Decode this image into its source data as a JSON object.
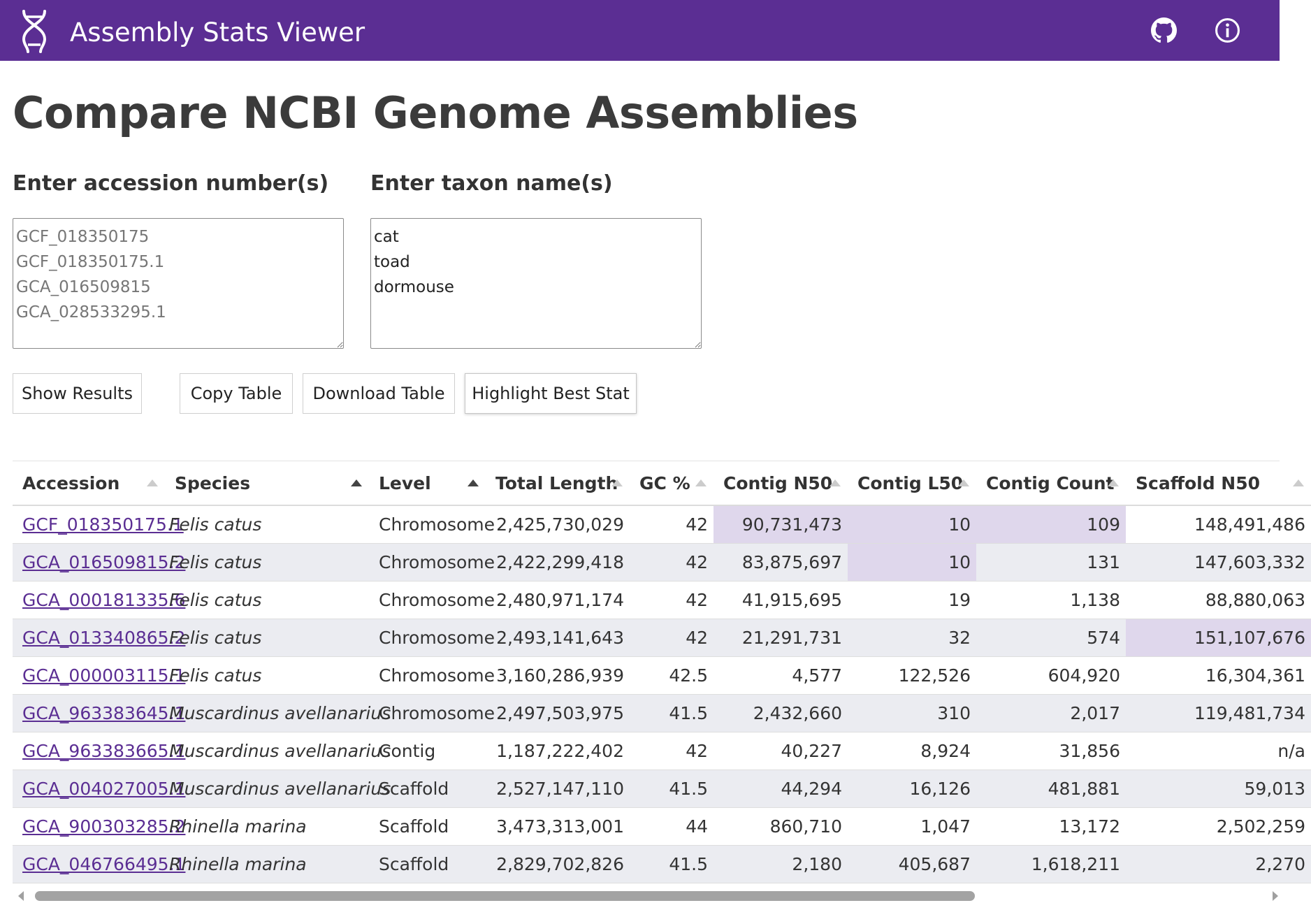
{
  "header": {
    "app_title": "Assembly Stats Viewer",
    "logo_icon": "dna-icon",
    "github_icon": "github-icon",
    "info_icon": "info-icon",
    "bg_color": "#5b2e93"
  },
  "main": {
    "page_title": "Compare NCBI Genome Assemblies",
    "accession_label": "Enter accession number(s)",
    "accession_placeholder": "GCF_018350175\nGCF_018350175.1\nGCA_016509815\nGCA_028533295.1",
    "taxon_label": "Enter taxon name(s)",
    "taxon_value": "cat\ntoad\ndormouse"
  },
  "buttons": {
    "show_results": "Show Results",
    "copy_table": "Copy Table",
    "download_table": "Download Table",
    "highlight_best": "Highlight Best Stat"
  },
  "table": {
    "columns": [
      "Accession",
      "Species",
      "Level",
      "Total Length",
      "GC %",
      "Contig N50",
      "Contig L50",
      "Contig Count",
      "Scaffold N50"
    ],
    "rows": [
      [
        "GCF_018350175.1",
        "Felis catus",
        "Chromosome",
        "2,425,730,029",
        "42",
        "90,731,473",
        "10",
        "109",
        "148,491,486"
      ],
      [
        "GCA_016509815.2",
        "Felis catus",
        "Chromosome",
        "2,422,299,418",
        "42",
        "83,875,697",
        "10",
        "131",
        "147,603,332"
      ],
      [
        "GCA_000181335.6",
        "Felis catus",
        "Chromosome",
        "2,480,971,174",
        "42",
        "41,915,695",
        "19",
        "1,138",
        "88,880,063"
      ],
      [
        "GCA_013340865.2",
        "Felis catus",
        "Chromosome",
        "2,493,141,643",
        "42",
        "21,291,731",
        "32",
        "574",
        "151,107,676"
      ],
      [
        "GCA_000003115.1",
        "Felis catus",
        "Chromosome",
        "3,160,286,939",
        "42.5",
        "4,577",
        "122,526",
        "604,920",
        "16,304,361"
      ],
      [
        "GCA_963383645.1",
        "Muscardinus avellanarius",
        "Chromosome",
        "2,497,503,975",
        "41.5",
        "2,432,660",
        "310",
        "2,017",
        "119,481,734"
      ],
      [
        "GCA_963383665.1",
        "Muscardinus avellanarius",
        "Contig",
        "1,187,222,402",
        "42",
        "40,227",
        "8,924",
        "31,856",
        "n/a"
      ],
      [
        "GCA_004027005.1",
        "Muscardinus avellanarius",
        "Scaffold",
        "2,527,147,110",
        "41.5",
        "44,294",
        "16,126",
        "481,881",
        "59,013"
      ],
      [
        "GCA_900303285.2",
        "Rhinella marina",
        "Scaffold",
        "3,473,313,001",
        "44",
        "860,710",
        "1,047",
        "13,172",
        "2,502,259"
      ],
      [
        "GCA_046766495.1",
        "Rhinella marina",
        "Scaffold",
        "2,829,702,826",
        "41.5",
        "2,180",
        "405,687",
        "1,618,211",
        "2,270"
      ]
    ],
    "highlight_color": "#dfd7ec",
    "stripe_color": "#ebecf1",
    "link_color": "#5b2e93"
  }
}
